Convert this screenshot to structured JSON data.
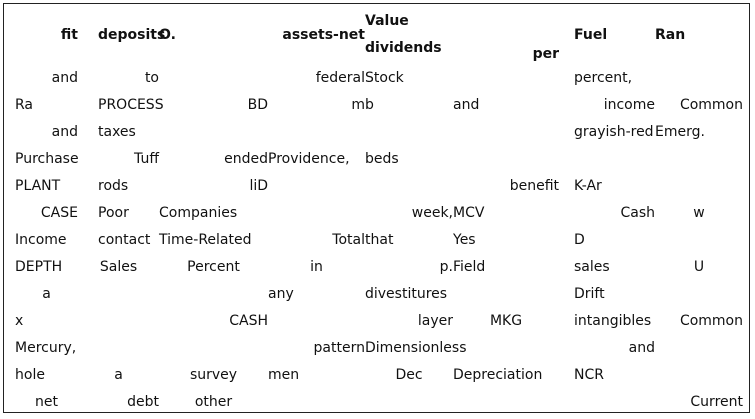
{
  "table": {
    "headers": [
      "fit",
      "deposits",
      "O.",
      "assets-net",
      "Value dividends",
      "per",
      "Fuel",
      "Ran"
    ],
    "header_lines": {
      "col4": [
        "Value",
        "dividends"
      ]
    },
    "rows": [
      [
        "and",
        "to",
        "",
        "federal",
        "Stock",
        "",
        "percent,",
        ""
      ],
      [
        "Ra",
        "PROCESS",
        "BD",
        "m",
        "b",
        "and",
        "income",
        "Common"
      ],
      [
        "and",
        "taxes",
        "",
        "",
        "",
        "",
        "grayish-red",
        "Emerg."
      ],
      [
        "Purchase",
        "Tuff",
        "ended",
        "Providence,",
        "beds",
        "",
        "",
        ""
      ],
      [
        "PLANT",
        "rods",
        "liD",
        "",
        "",
        "benefit",
        "K-Ar",
        ""
      ],
      [
        "CASE",
        "Poor",
        "Companies",
        "",
        "week,",
        "MCV",
        "Cash",
        "w"
      ],
      [
        "Income",
        "contact",
        "Time-Related",
        "Total",
        "that",
        "Yes",
        "D",
        ""
      ],
      [
        "DEPTH",
        "Sales",
        "Percent",
        "in",
        "p.",
        "Field",
        "sales",
        "U"
      ],
      [
        "a",
        "",
        "",
        "any",
        "divestitures",
        "",
        "Drift",
        ""
      ],
      [
        "x",
        "",
        "CASH",
        "",
        "layer",
        "MKG",
        "intangibles",
        "Common"
      ],
      [
        "Mercury,",
        "",
        "",
        "pattern",
        "Dimensionless",
        "",
        "and",
        ""
      ],
      [
        "hole",
        "a",
        "survey",
        "men",
        "Dec",
        "Depreciation",
        "NCR",
        ""
      ],
      [
        "net",
        "debt",
        "other",
        "",
        "",
        "",
        "",
        "Current"
      ]
    ]
  }
}
